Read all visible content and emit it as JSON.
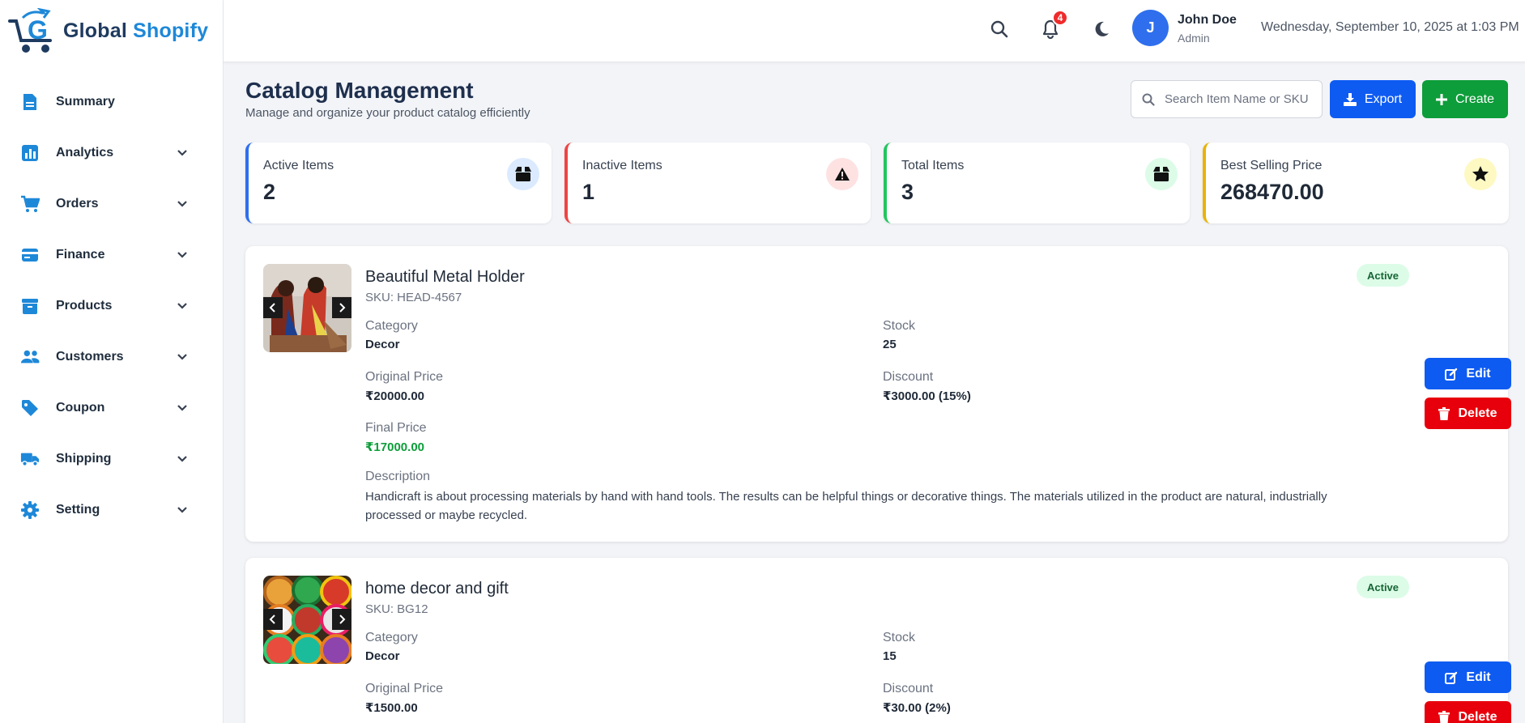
{
  "brand": {
    "part1": "Global",
    "part2": "Shopify"
  },
  "sidebar": {
    "items": [
      {
        "label": "Summary",
        "icon": "summary-icon",
        "has_children": false
      },
      {
        "label": "Analytics",
        "icon": "analytics-icon",
        "has_children": true
      },
      {
        "label": "Orders",
        "icon": "cart-icon",
        "has_children": true
      },
      {
        "label": "Finance",
        "icon": "wallet-icon",
        "has_children": true
      },
      {
        "label": "Products",
        "icon": "archive-icon",
        "has_children": true
      },
      {
        "label": "Customers",
        "icon": "users-icon",
        "has_children": true
      },
      {
        "label": "Coupon",
        "icon": "tag-icon",
        "has_children": true
      },
      {
        "label": "Shipping",
        "icon": "truck-icon",
        "has_children": true
      },
      {
        "label": "Setting",
        "icon": "gear-icon",
        "has_children": true
      }
    ]
  },
  "topbar": {
    "notification_count": "4",
    "user": {
      "initial": "J",
      "name": "John Doe",
      "role": "Admin"
    },
    "datetime": "Wednesday, September 10, 2025 at 1:03 PM"
  },
  "page": {
    "title": "Catalog Management",
    "subtitle": "Manage and organize your product catalog efficiently",
    "search_placeholder": "Search Item Name or SKU",
    "export_label": "Export",
    "create_label": "Create"
  },
  "stats": [
    {
      "label": "Active Items",
      "value": "2",
      "color": "#2f6fed",
      "icon": "box-icon"
    },
    {
      "label": "Inactive Items",
      "value": "1",
      "color": "#ef4444",
      "icon": "warning-icon"
    },
    {
      "label": "Total Items",
      "value": "3",
      "color": "#22c55e",
      "icon": "box-icon"
    },
    {
      "label": "Best Selling Price",
      "value": "268470.00",
      "color": "#eab308",
      "icon": "star-icon"
    }
  ],
  "labels": {
    "category": "Category",
    "stock": "Stock",
    "original_price": "Original Price",
    "discount": "Discount",
    "final_price": "Final Price",
    "description": "Description",
    "edit": "Edit",
    "delete": "Delete"
  },
  "items": [
    {
      "name": "Beautiful Metal Holder",
      "sku": "SKU: HEAD-4567",
      "status": "Active",
      "category": "Decor",
      "stock": "25",
      "original_price": "₹20000.00",
      "discount": "₹3000.00 (15%)",
      "final_price": "₹17000.00",
      "description": "Handicraft is about processing materials by hand with hand tools. The results can be helpful things or decorative things. The materials utilized in the product are natural, industrially processed or maybe recycled."
    },
    {
      "name": "home decor and gift",
      "sku": "SKU: BG12",
      "status": "Active",
      "category": "Decor",
      "stock": "15",
      "original_price": "₹1500.00",
      "discount": "₹30.00 (2%)"
    }
  ],
  "colors": {
    "primary": "#0e5bf2",
    "success": "#0d9d3a",
    "danger": "#e7000b",
    "accent": "#1e88d8"
  }
}
